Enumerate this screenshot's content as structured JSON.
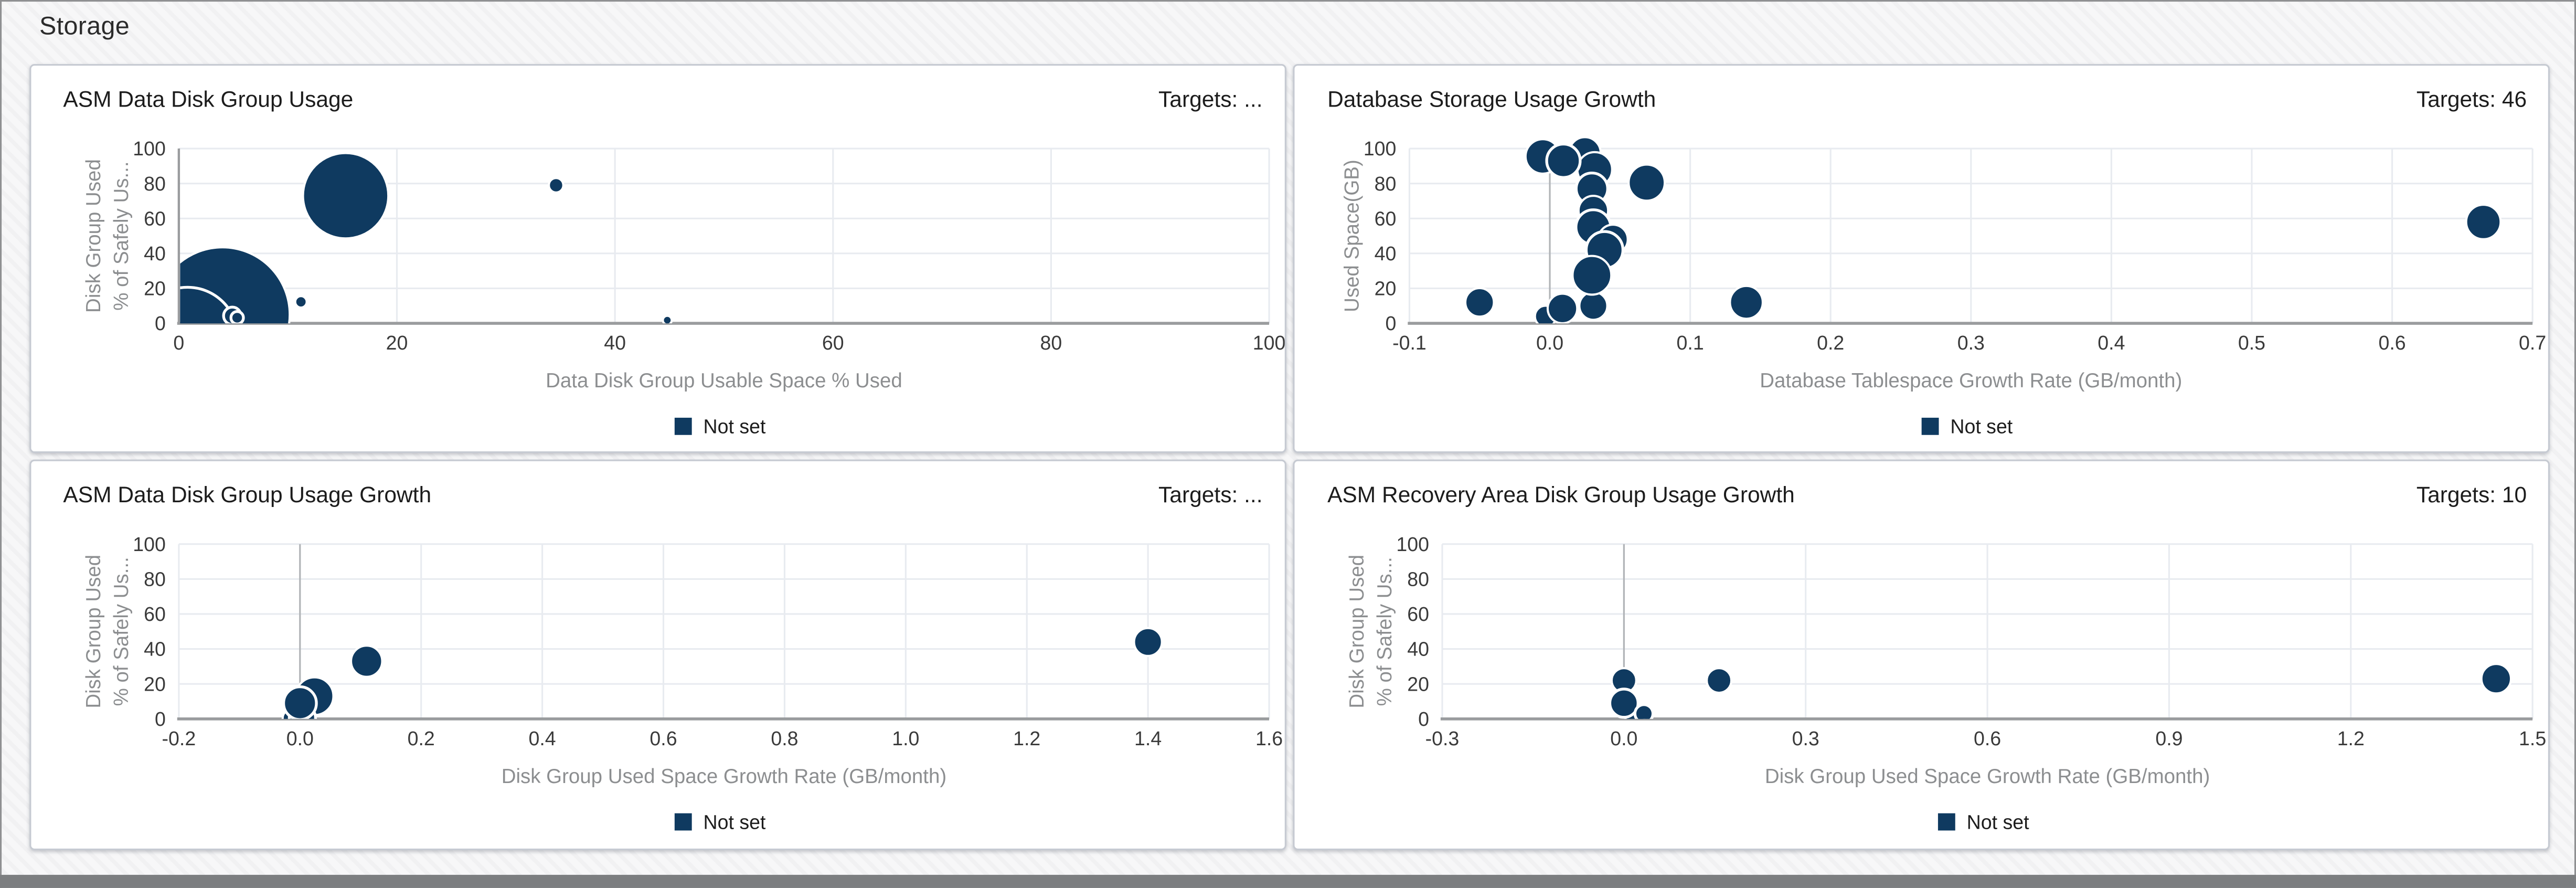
{
  "page": {
    "title": "Storage"
  },
  "colors": {
    "bubble": "#0f3a60",
    "bubble_stroke": "#ffffff",
    "grid_line": "#e8ebf0",
    "axis_line": "#9a9c9e",
    "zero_line": "#b0b3b6",
    "tick_text": "#3a3a3a",
    "axis_title_text": "#8c8e90",
    "legend_text": "#1c1c1c",
    "card_border": "#c6cad2",
    "frame_border": "#8f9092",
    "bottom_bar": "#7c7e80"
  },
  "chart_data": [
    {
      "type": "scatter",
      "subtype": "bubble",
      "title": "ASM Data Disk Group Usage",
      "targets_label": "Targets: ...",
      "xlabel": "Data Disk Group Usable Space % Used",
      "ylabel_lines": [
        "Disk Group Used",
        "% of Safely Us..."
      ],
      "legend_label": "Not set",
      "legend_position": "bottom",
      "xlim": [
        0,
        100
      ],
      "ylim": [
        0,
        100
      ],
      "x_tick_values": [
        0,
        20,
        40,
        60,
        80,
        100
      ],
      "x_tick_labels": [
        "0",
        "20",
        "40",
        "60",
        "80",
        "100"
      ],
      "y_tick_values": [
        0,
        20,
        40,
        60,
        80,
        100
      ],
      "y_tick_labels": [
        "0",
        "20",
        "40",
        "60",
        "80",
        "100"
      ],
      "grid": true,
      "bubbles": [
        {
          "x": 4.0,
          "y": 5.0,
          "r": 41.0,
          "ring": false
        },
        {
          "x": 0.8,
          "y": -8.0,
          "r": 30.5,
          "ring": true
        },
        {
          "x": 4.9,
          "y": 4.3,
          "r": 5.3,
          "ring": true
        },
        {
          "x": 5.35,
          "y": 3.2,
          "r": 3.8,
          "ring": true
        },
        {
          "x": 15.3,
          "y": 73.0,
          "r": 26.0,
          "ring": false
        },
        {
          "x": 34.6,
          "y": 79.0,
          "r": 4.4,
          "ring": false
        },
        {
          "x": 11.2,
          "y": 12.3,
          "r": 3.5,
          "ring": false
        },
        {
          "x": 44.8,
          "y": 1.8,
          "r": 2.7,
          "ring": false
        }
      ]
    },
    {
      "type": "scatter",
      "subtype": "bubble",
      "title": "Database Storage Usage Growth",
      "targets_label": "Targets: 46",
      "xlabel": "Database Tablespace Growth Rate (GB/month)",
      "ylabel_lines": [
        "Used Space(GB)"
      ],
      "legend_label": "Not set",
      "legend_position": "bottom",
      "xlim": [
        -0.1,
        0.7
      ],
      "ylim": [
        0,
        100
      ],
      "x_tick_values": [
        -0.1,
        0.0,
        0.1,
        0.2,
        0.3,
        0.4,
        0.5,
        0.6,
        0.7
      ],
      "x_tick_labels": [
        "-0.1",
        "0.0",
        "0.1",
        "0.2",
        "0.3",
        "0.4",
        "0.5",
        "0.6",
        "0.7"
      ],
      "y_tick_values": [
        0,
        20,
        40,
        60,
        80,
        100
      ],
      "y_tick_labels": [
        "0",
        "20",
        "40",
        "60",
        "80",
        "100"
      ],
      "grid": true,
      "bubbles": [
        {
          "x": -0.05,
          "y": 12.0,
          "r": 8.7,
          "ring": false
        },
        {
          "x": -0.003,
          "y": 4.0,
          "r": 6.5,
          "ring": false
        },
        {
          "x": 0.009,
          "y": 8.5,
          "r": 9.0,
          "ring": false
        },
        {
          "x": 0.031,
          "y": 10.0,
          "r": 8.5,
          "ring": false
        },
        {
          "x": -0.005,
          "y": 95.5,
          "r": 10.5,
          "ring": false
        },
        {
          "x": 0.025,
          "y": 97.5,
          "r": 9.6,
          "ring": false
        },
        {
          "x": 0.032,
          "y": 88.0,
          "r": 10.6,
          "ring": false
        },
        {
          "x": 0.0097,
          "y": 93.0,
          "r": 10.2,
          "ring": true
        },
        {
          "x": 0.03,
          "y": 77.0,
          "r": 9.6,
          "ring": true
        },
        {
          "x": 0.031,
          "y": 64.5,
          "r": 9.0,
          "ring": false
        },
        {
          "x": 0.031,
          "y": 55.0,
          "r": 10.6,
          "ring": true
        },
        {
          "x": 0.045,
          "y": 48.0,
          "r": 9.0,
          "ring": false
        },
        {
          "x": 0.039,
          "y": 42.0,
          "r": 11.2,
          "ring": true
        },
        {
          "x": 0.03,
          "y": 27.5,
          "r": 11.8,
          "ring": false
        },
        {
          "x": 0.069,
          "y": 80.5,
          "r": 11.0,
          "ring": false
        },
        {
          "x": 0.14,
          "y": 12.0,
          "r": 10.0,
          "ring": false
        },
        {
          "x": 0.665,
          "y": 58.0,
          "r": 10.5,
          "ring": false
        }
      ]
    },
    {
      "type": "scatter",
      "subtype": "bubble",
      "title": "ASM Data Disk Group Usage Growth",
      "targets_label": "Targets: ...",
      "xlabel": "Disk Group Used Space Growth Rate (GB/month)",
      "ylabel_lines": [
        "Disk Group Used",
        "% of Safely Us..."
      ],
      "legend_label": "Not set",
      "legend_position": "bottom",
      "xlim": [
        -0.2,
        1.6
      ],
      "ylim": [
        0,
        100
      ],
      "x_tick_values": [
        -0.2,
        0.0,
        0.2,
        0.4,
        0.6,
        0.8,
        1.0,
        1.2,
        1.4,
        1.6
      ],
      "x_tick_labels": [
        "-0.2",
        "0.0",
        "0.2",
        "0.4",
        "0.6",
        "0.8",
        "1.0",
        "1.2",
        "1.4",
        "1.6"
      ],
      "y_tick_values": [
        0,
        20,
        40,
        60,
        80,
        100
      ],
      "y_tick_labels": [
        "0",
        "20",
        "40",
        "60",
        "80",
        "100"
      ],
      "grid": true,
      "bubbles": [
        {
          "x": -0.015,
          "y": 0.5,
          "r": 5.0,
          "ring": false
        },
        {
          "x": 0.024,
          "y": 13.0,
          "r": 11.5,
          "ring": false
        },
        {
          "x": 0.004,
          "y": 0.5,
          "r": 8.0,
          "ring": true
        },
        {
          "x": 0.0,
          "y": 9.0,
          "r": 10.0,
          "ring": true
        },
        {
          "x": 0.11,
          "y": 33.0,
          "r": 9.5,
          "ring": false
        },
        {
          "x": 1.4,
          "y": 44.0,
          "r": 8.5,
          "ring": false
        }
      ]
    },
    {
      "type": "scatter",
      "subtype": "bubble",
      "title": "ASM Recovery Area Disk Group Usage Growth",
      "targets_label": "Targets: 10",
      "xlabel": "Disk Group Used Space Growth Rate (GB/month)",
      "ylabel_lines": [
        "Disk Group Used",
        "% of Safely Us..."
      ],
      "legend_label": "Not set",
      "legend_position": "bottom",
      "xlim": [
        -0.3,
        1.5
      ],
      "ylim": [
        0,
        100
      ],
      "x_tick_values": [
        -0.3,
        0.0,
        0.3,
        0.6,
        0.9,
        1.2,
        1.5
      ],
      "x_tick_labels": [
        "-0.3",
        "0.0",
        "0.3",
        "0.6",
        "0.9",
        "1.2",
        "1.5"
      ],
      "y_tick_values": [
        0,
        20,
        40,
        60,
        80,
        100
      ],
      "y_tick_labels": [
        "0",
        "20",
        "40",
        "60",
        "80",
        "100"
      ],
      "grid": true,
      "bubbles": [
        {
          "x": 0.0,
          "y": 22.0,
          "r": 7.5,
          "ring": false
        },
        {
          "x": 0.018,
          "y": 3.0,
          "r": 6.5,
          "ring": false
        },
        {
          "x": 0.0,
          "y": 9.0,
          "r": 8.6,
          "ring": true
        },
        {
          "x": 0.033,
          "y": 3.0,
          "r": 5.5,
          "ring": true
        },
        {
          "x": 0.157,
          "y": 22.0,
          "r": 7.5,
          "ring": false
        },
        {
          "x": 1.44,
          "y": 23.0,
          "r": 9.0,
          "ring": false
        }
      ]
    }
  ]
}
